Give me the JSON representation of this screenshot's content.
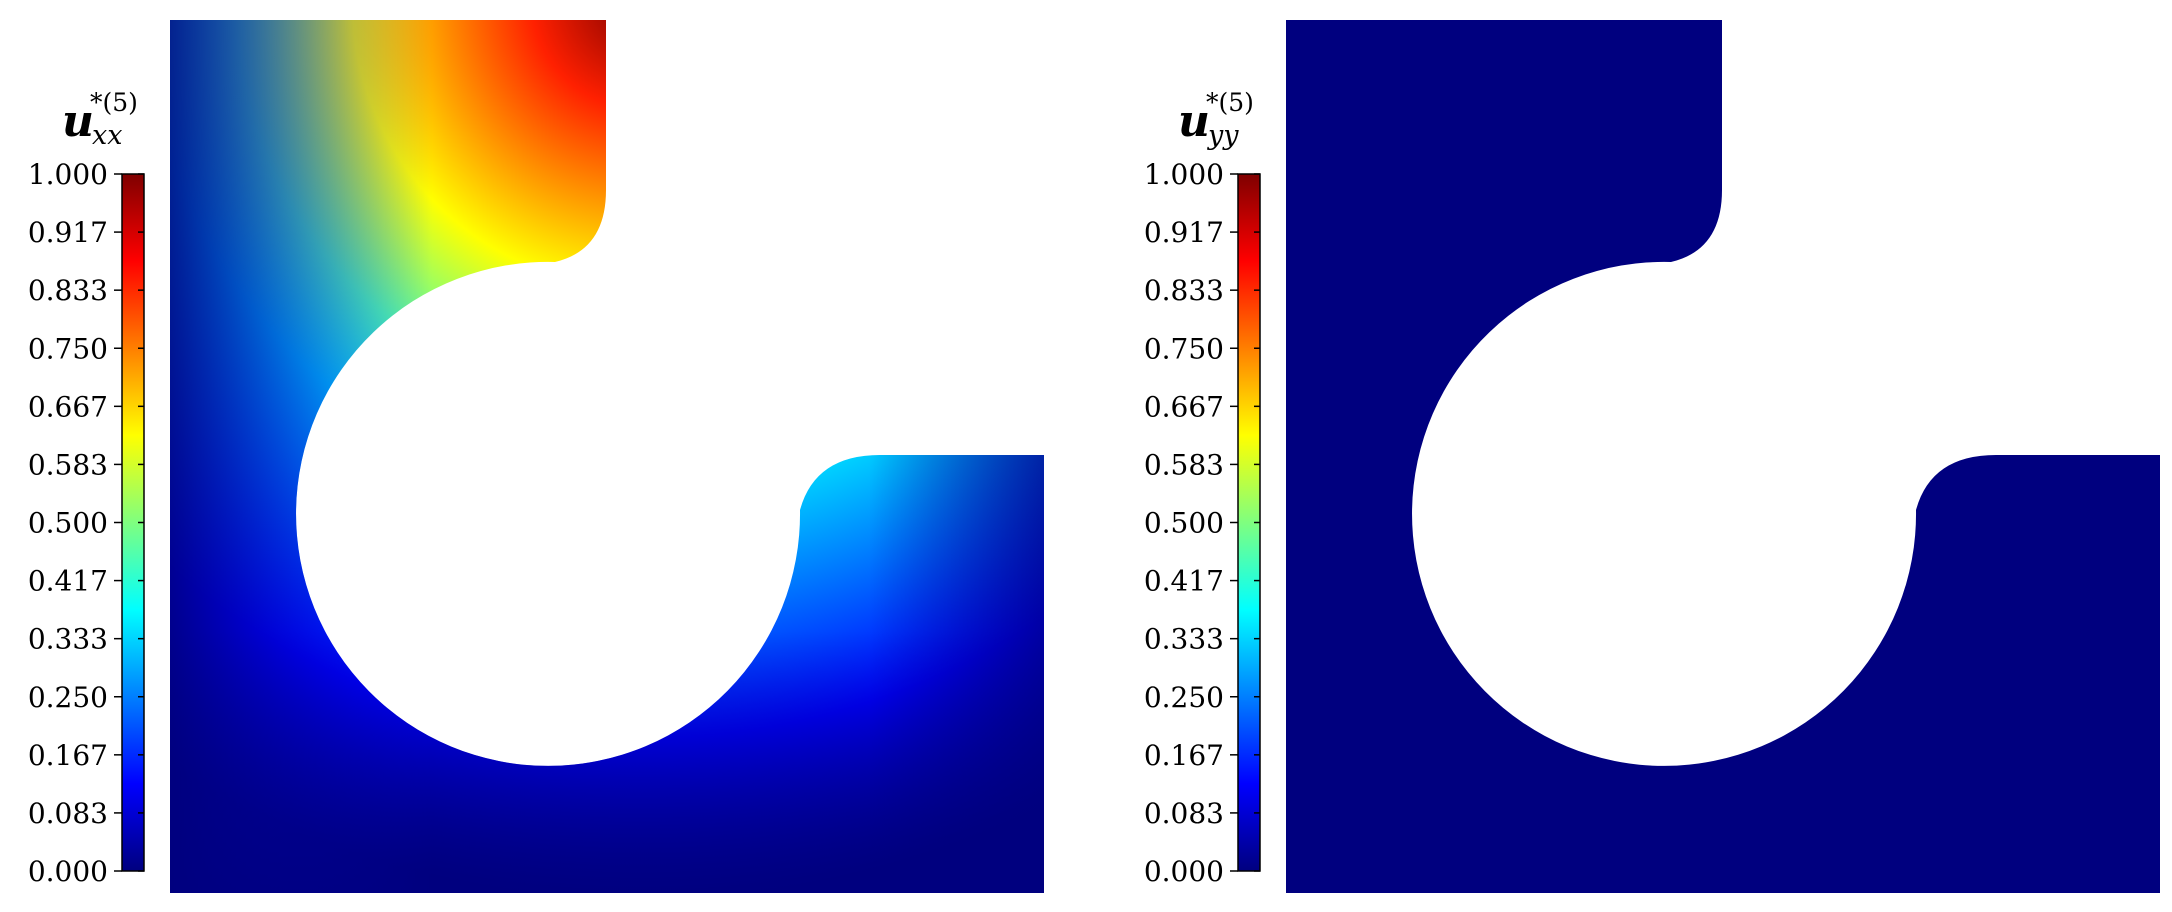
{
  "panels": [
    {
      "id": "left",
      "colorbar": {
        "symbol": "u",
        "subscript": "xx",
        "superscript": "*(5)",
        "ticks": [
          "1.000",
          "0.917",
          "0.833",
          "0.750",
          "0.667",
          "0.583",
          "0.500",
          "0.417",
          "0.333",
          "0.250",
          "0.167",
          "0.083",
          "0.000"
        ],
        "range": [
          0,
          1
        ]
      },
      "field": "gradient"
    },
    {
      "id": "right",
      "colorbar": {
        "symbol": "u",
        "subscript": "yy",
        "superscript": "*(5)",
        "ticks": [
          "1.000",
          "0.917",
          "0.833",
          "0.750",
          "0.667",
          "0.583",
          "0.500",
          "0.417",
          "0.333",
          "0.250",
          "0.167",
          "0.083",
          "0.000"
        ],
        "range": [
          0,
          1
        ]
      },
      "field": "uniform",
      "uniform_color": "#00007f"
    }
  ],
  "colormap": [
    "#00007f",
    "#0000ff",
    "#007fff",
    "#00ffff",
    "#7fff7f",
    "#ffff00",
    "#ff7f00",
    "#ff0000",
    "#7f0000"
  ]
}
